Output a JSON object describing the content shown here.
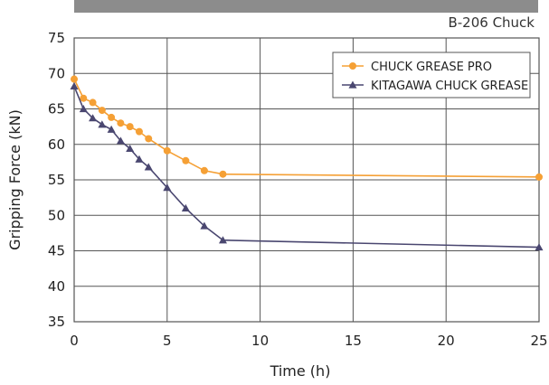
{
  "colors": {
    "series_orange": "#f5a035",
    "series_navy": "#4a4770",
    "grid": "#555555",
    "header_bar": "#8c8c8c"
  },
  "chart_data": {
    "type": "line",
    "title": "B-206 Chuck",
    "xlabel": "Time (h)",
    "ylabel": "Gripping Force (kN)",
    "xlim": [
      0,
      25
    ],
    "ylim": [
      35,
      75
    ],
    "xticks": [
      "0",
      "5",
      "10",
      "15",
      "20",
      "25"
    ],
    "yticks": [
      "35",
      "40",
      "45",
      "50",
      "55",
      "60",
      "65",
      "70",
      "75"
    ],
    "grid": true,
    "legend_position": "top-right",
    "series": [
      {
        "name": "CHUCK GREASE PRO",
        "marker": "circle",
        "color": "#f5a035",
        "x": [
          0,
          0.5,
          1,
          1.5,
          2,
          2.5,
          3,
          3.5,
          4,
          5,
          6,
          7,
          8,
          25
        ],
        "y": [
          69.2,
          66.5,
          65.9,
          64.8,
          63.8,
          63.0,
          62.5,
          61.8,
          60.8,
          59.1,
          57.7,
          56.3,
          55.8,
          55.4
        ]
      },
      {
        "name": "KITAGAWA CHUCK GREASE",
        "marker": "triangle",
        "color": "#4a4770",
        "x": [
          0,
          0.5,
          1,
          1.5,
          2,
          2.5,
          3,
          3.5,
          4,
          5,
          6,
          7,
          8,
          25
        ],
        "y": [
          68.2,
          65.0,
          63.7,
          62.8,
          62.1,
          60.5,
          59.4,
          57.9,
          56.8,
          53.9,
          51.0,
          48.5,
          46.5,
          45.5
        ]
      }
    ]
  }
}
